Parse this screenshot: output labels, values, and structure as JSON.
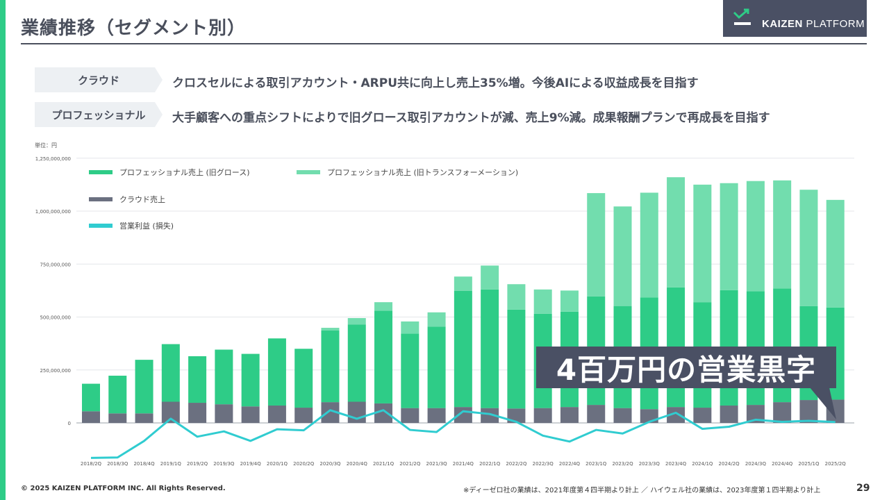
{
  "header": {
    "title": "業績推移（セグメント別）",
    "logo_text": "KAIZEN PLATFORM",
    "logo_bold": "KAIZEN",
    "logo_light": " PLATFORM"
  },
  "segments": [
    {
      "tag": "クラウド",
      "desc": "クロスセルによる取引アカウント・ARPU共に向上し売上35%増。今後AIによる収益成長を目指す"
    },
    {
      "tag": "プロフェッショナル",
      "desc": "大手顧客への重点シフトによりで旧グロース取引アカウントが減、売上9%減。成果報酬プランで再成長を目指す"
    }
  ],
  "unit_label": "単位：円",
  "callout": "4百万円の営業黒字",
  "footer": {
    "copyright": "© 2025 KAIZEN PLATFORM INC. All Rights Reserved.",
    "note": "※ディーゼロ社の業績は、2021年度第４四半期より計上 ／ ハイウェル社の業績は、2023年度第１四半期より計上",
    "page": "29"
  },
  "colors": {
    "growth": "#2ecc87",
    "transformation": "#72ddae",
    "cloud": "#6b7080",
    "operating": "#30ccd0",
    "dark": "#4a5064"
  },
  "chart_data": {
    "type": "bar",
    "stacked": true,
    "categories": [
      "2018/2Q",
      "2018/3Q",
      "2018/4Q",
      "2019/1Q",
      "2019/2Q",
      "2019/3Q",
      "2019/4Q",
      "2020/1Q",
      "2020/2Q",
      "2020/3Q",
      "2020/4Q",
      "2021/1Q",
      "2021/2Q",
      "2021/3Q",
      "2021/4Q",
      "2022/1Q",
      "2022/2Q",
      "2022/3Q",
      "2022/4Q",
      "2023/1Q",
      "2023/2Q",
      "2023/3Q",
      "2023/4Q",
      "2024/1Q",
      "2024/2Q",
      "2024/3Q",
      "2024/4Q",
      "2025/1Q",
      "2025/2Q"
    ],
    "ylim": [
      -180000000,
      1250000000
    ],
    "yticks": [
      0,
      250000000,
      500000000,
      750000000,
      1000000000,
      1250000000
    ],
    "ytick_labels": [
      "0",
      "250,000,000",
      "500,000,000",
      "750,000,000",
      "1,000,000,000",
      "1,250,000,000"
    ],
    "legend_placement": "top-left",
    "grid": true,
    "series": [
      {
        "name": "クラウド売上",
        "kind": "bar",
        "values": [
          55000000,
          45000000,
          45000000,
          100000000,
          95000000,
          88000000,
          78000000,
          82000000,
          72000000,
          98000000,
          100000000,
          92000000,
          70000000,
          70000000,
          75000000,
          70000000,
          68000000,
          70000000,
          75000000,
          85000000,
          70000000,
          65000000,
          75000000,
          72000000,
          82000000,
          85000000,
          98000000,
          108000000,
          110000000
        ]
      },
      {
        "name": "プロフェッショナル売上 (旧グロース)",
        "kind": "bar",
        "values": [
          130000000,
          178000000,
          253000000,
          272000000,
          220000000,
          258000000,
          248000000,
          317000000,
          278000000,
          338000000,
          365000000,
          438000000,
          352000000,
          385000000,
          548000000,
          560000000,
          467000000,
          445000000,
          450000000,
          512000000,
          482000000,
          527000000,
          565000000,
          498000000,
          545000000,
          537000000,
          537000000,
          443000000,
          435000000
        ]
      },
      {
        "name": "プロフェッショナル売上 (旧トランスフォーメーション)",
        "kind": "bar",
        "values": [
          0,
          0,
          0,
          0,
          0,
          0,
          0,
          0,
          0,
          13000000,
          30000000,
          40000000,
          57000000,
          67000000,
          68000000,
          113000000,
          120000000,
          115000000,
          100000000,
          488000000,
          470000000,
          495000000,
          520000000,
          555000000,
          505000000,
          520000000,
          510000000,
          550000000,
          508000000
        ]
      },
      {
        "name": "営業利益 (損失)",
        "kind": "line",
        "values": [
          -165000000,
          -163000000,
          -85000000,
          20000000,
          -65000000,
          -40000000,
          -85000000,
          -30000000,
          -35000000,
          60000000,
          20000000,
          60000000,
          -33000000,
          -43000000,
          55000000,
          42000000,
          5000000,
          -60000000,
          -88000000,
          -33000000,
          -50000000,
          5000000,
          48000000,
          -28000000,
          -18000000,
          15000000,
          5000000,
          10000000,
          4000000
        ]
      }
    ]
  }
}
